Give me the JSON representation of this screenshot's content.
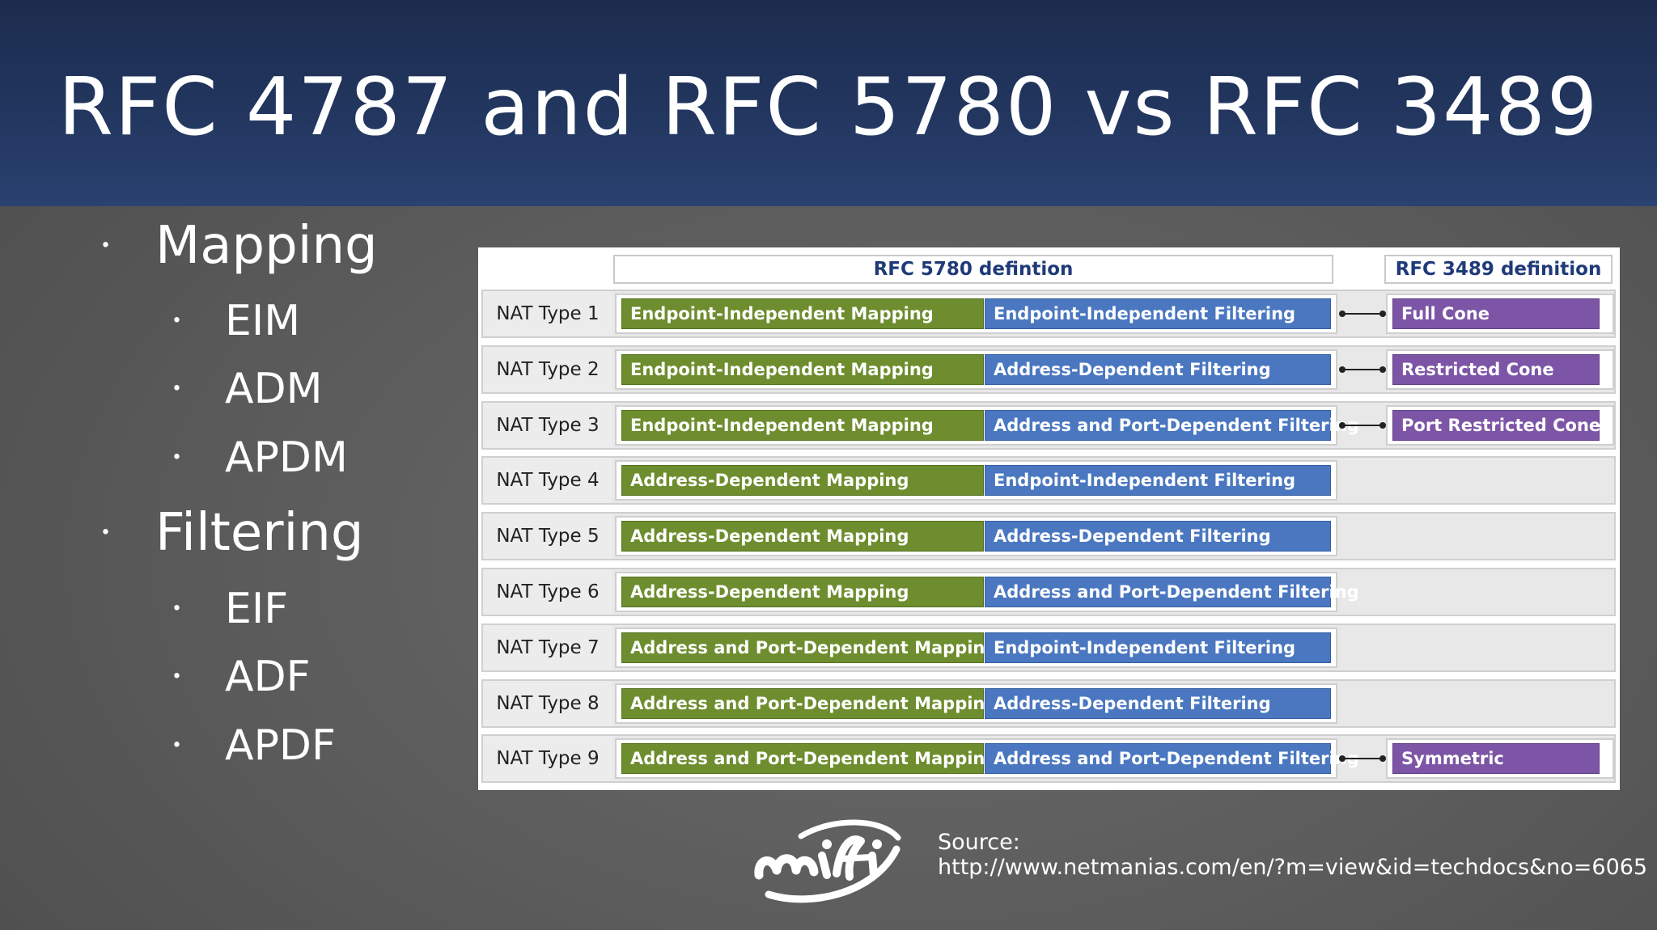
{
  "slide": {
    "title": "RFC 4787 and RFC 5780 vs RFC 3489"
  },
  "bullets": [
    {
      "label": "Mapping",
      "level": 1
    },
    {
      "label": "EIM",
      "level": 2
    },
    {
      "label": "ADM",
      "level": 2
    },
    {
      "label": "APDM",
      "level": 2
    },
    {
      "label": "Filtering",
      "level": 1
    },
    {
      "label": "EIF",
      "level": 2
    },
    {
      "label": "ADF",
      "level": 2
    },
    {
      "label": "APDF",
      "level": 2
    }
  ],
  "bullet_glyph": "•",
  "table": {
    "rfc5780_header": "RFC 5780 defintion",
    "rfc3489_header": "RFC 3489 definition",
    "rows": [
      {
        "nat": "NAT Type 1",
        "mapping": "Endpoint-Independent Mapping",
        "filtering": "Endpoint-Independent Filtering",
        "rfc3489": "Full Cone"
      },
      {
        "nat": "NAT Type 2",
        "mapping": "Endpoint-Independent Mapping",
        "filtering": "Address-Dependent Filtering",
        "rfc3489": "Restricted Cone"
      },
      {
        "nat": "NAT Type 3",
        "mapping": "Endpoint-Independent Mapping",
        "filtering": "Address and Port-Dependent Filtering",
        "rfc3489": "Port Restricted Cone"
      },
      {
        "nat": "NAT Type 4",
        "mapping": "Address-Dependent Mapping",
        "filtering": "Endpoint-Independent Filtering",
        "rfc3489": ""
      },
      {
        "nat": "NAT Type 5",
        "mapping": "Address-Dependent Mapping",
        "filtering": "Address-Dependent Filtering",
        "rfc3489": ""
      },
      {
        "nat": "NAT Type 6",
        "mapping": "Address-Dependent Mapping",
        "filtering": "Address and Port-Dependent Filtering",
        "rfc3489": ""
      },
      {
        "nat": "NAT Type 7",
        "mapping": "Address and Port-Dependent Mapping",
        "filtering": "Endpoint-Independent Filtering",
        "rfc3489": ""
      },
      {
        "nat": "NAT Type 8",
        "mapping": "Address and Port-Dependent Mapping",
        "filtering": "Address-Dependent Filtering",
        "rfc3489": ""
      },
      {
        "nat": "NAT Type 9",
        "mapping": "Address and Port-Dependent Mapping",
        "filtering": "Address and Port-Dependent Filtering",
        "rfc3489": "Symmetric"
      }
    ]
  },
  "footer": {
    "logo_text": "mifi",
    "source_label": "Source:",
    "source_url": "http://www.netmanias.com/en/?m=view&id=techdocs&no=6065"
  },
  "colors": {
    "header_bg": "#22365f",
    "mapping": "#6e8d2e",
    "filtering": "#4a77c0",
    "rfc3489": "#7d55a6",
    "header_text": "#1f3a78"
  }
}
